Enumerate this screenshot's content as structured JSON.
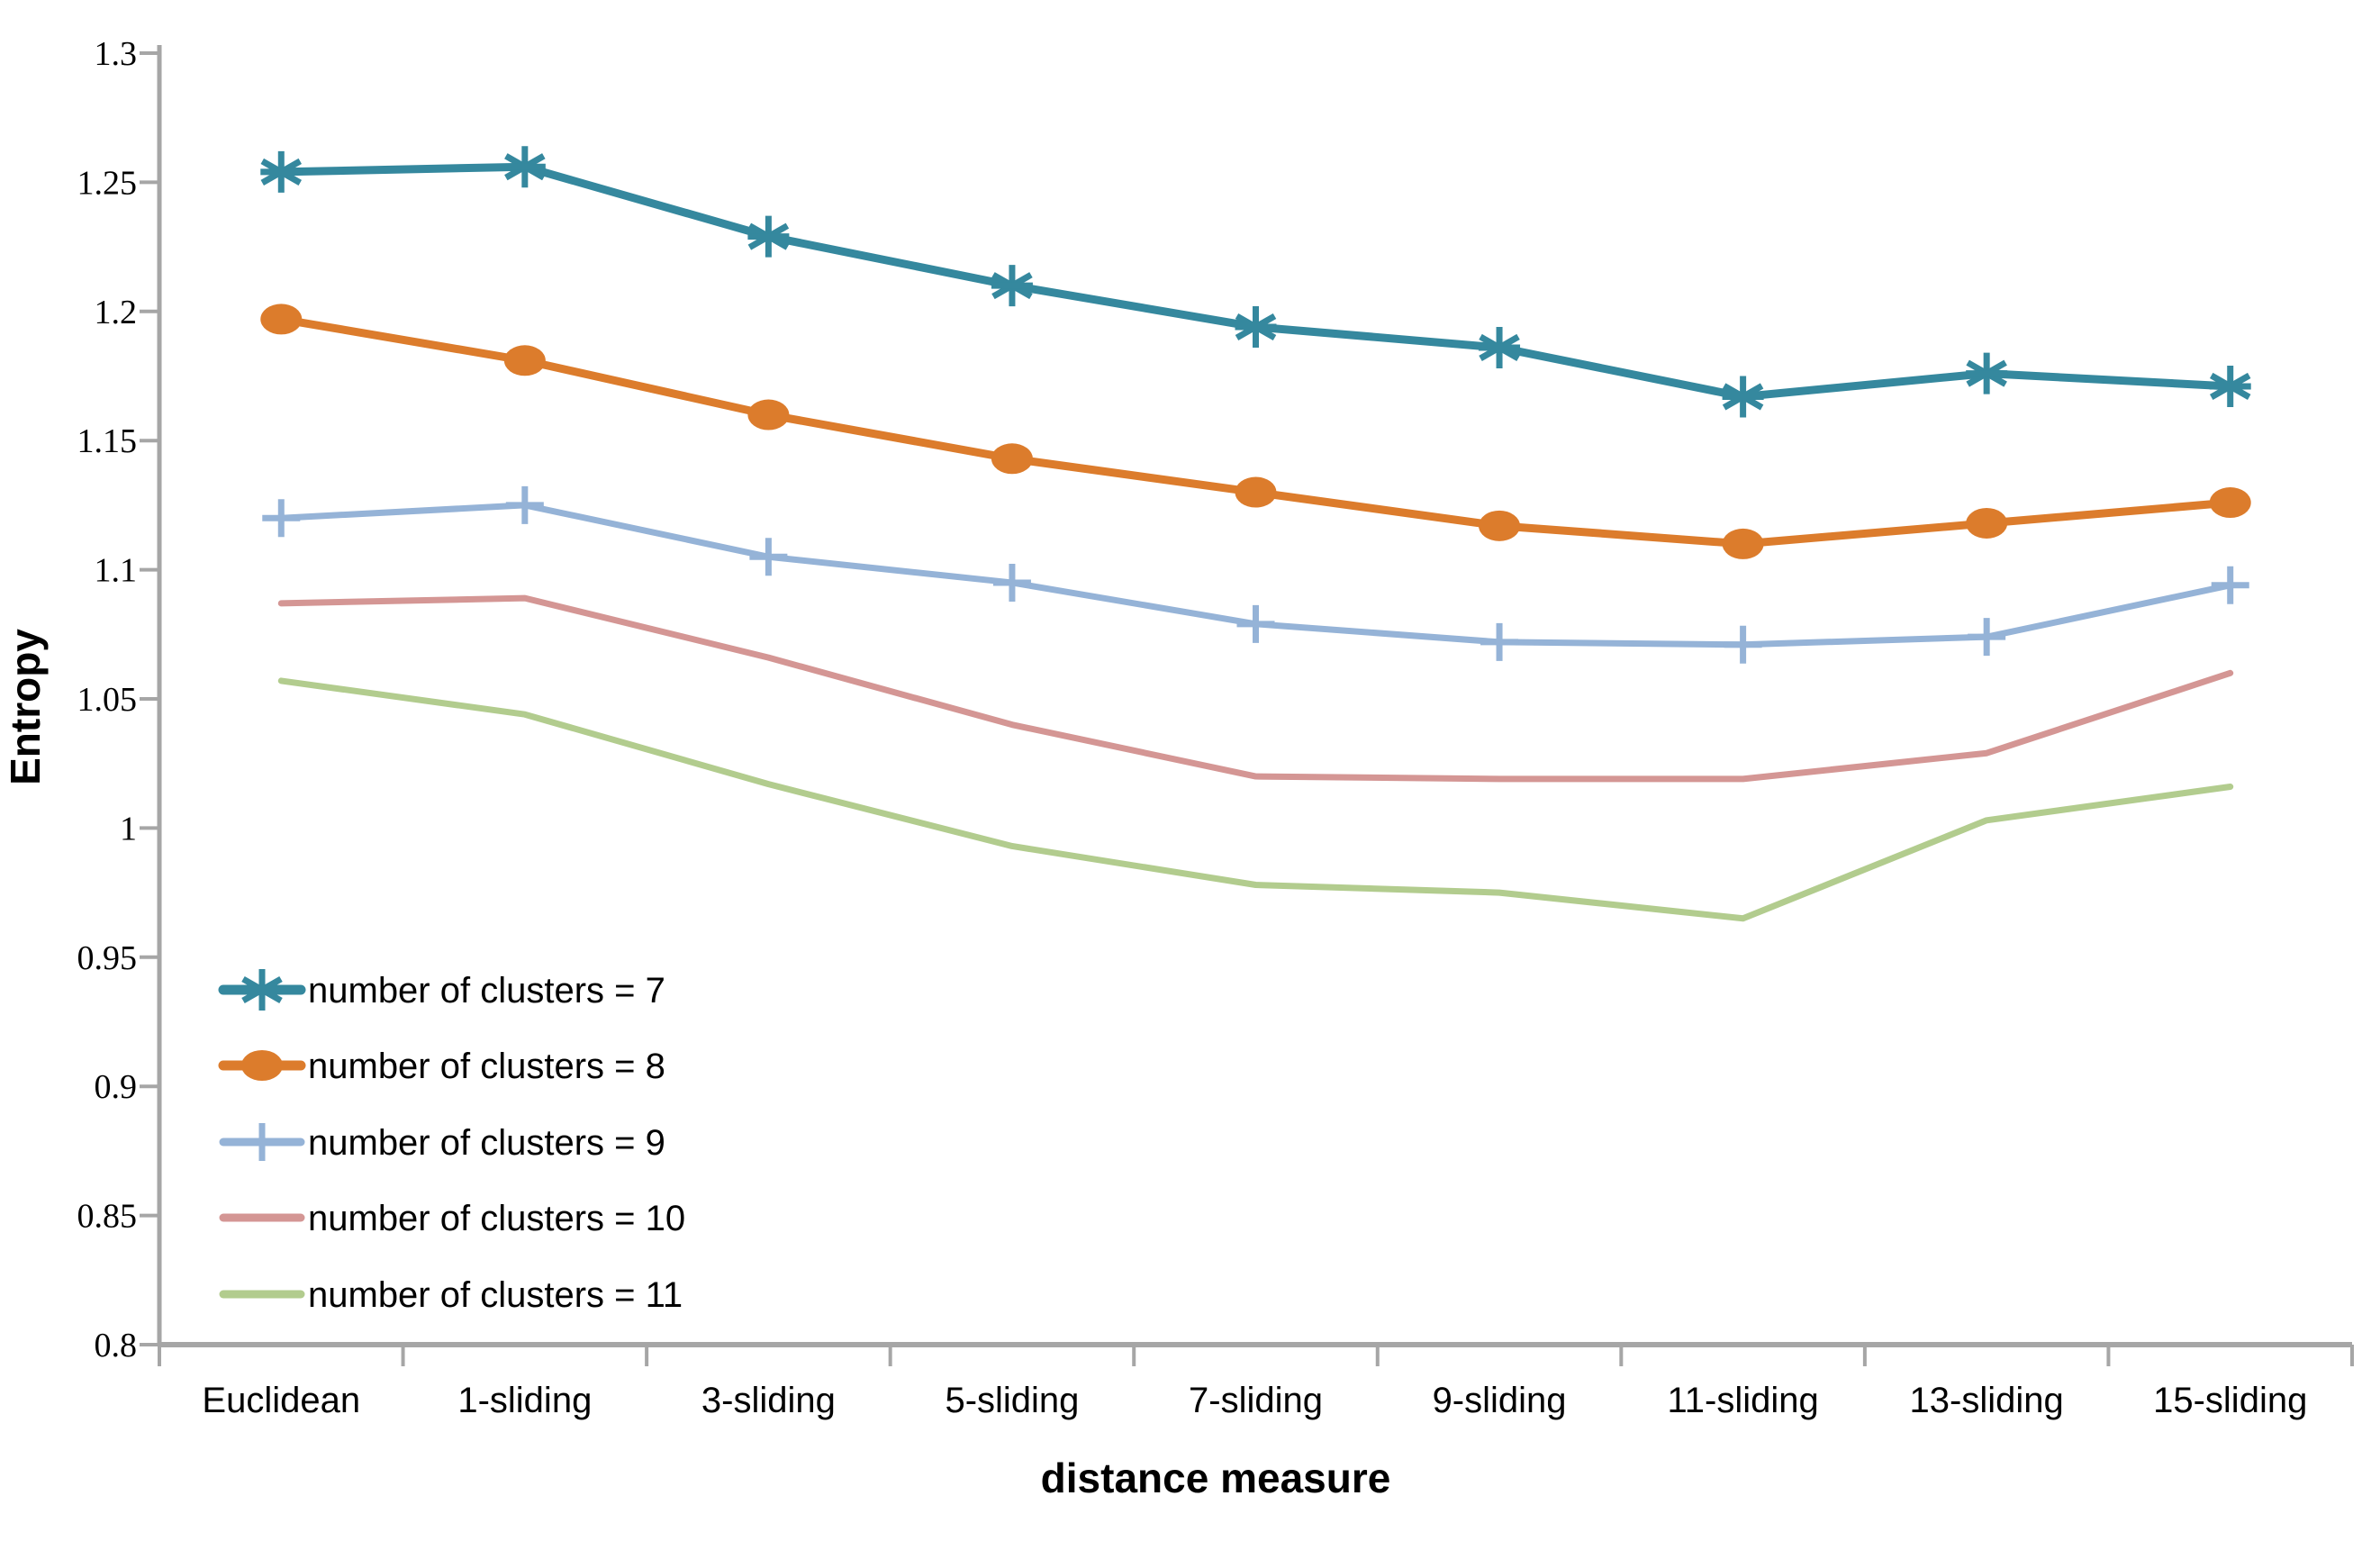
{
  "figure": {
    "background": "#ffffff",
    "axis_color": "#A6A6A6",
    "text_color": "#000000"
  },
  "chart_data": {
    "type": "line",
    "title": "",
    "xlabel": "distance measure",
    "ylabel": "Entropy",
    "categories": [
      "Euclidean",
      "1-sliding",
      "3-sliding",
      "5-sliding",
      "7-sliding",
      "9-sliding",
      "11-sliding",
      "13-sliding",
      "15-sliding"
    ],
    "series": [
      {
        "name": "number of clusters = 7",
        "color": "#35889E",
        "marker": "asterisk",
        "line_width": 9,
        "values": [
          1.254,
          1.256,
          1.229,
          1.21,
          1.194,
          1.186,
          1.167,
          1.176,
          1.171
        ]
      },
      {
        "name": "number of clusters = 8",
        "color": "#DC7C2C",
        "marker": "ellipse",
        "line_width": 9,
        "values": [
          1.197,
          1.181,
          1.16,
          1.143,
          1.13,
          1.117,
          1.11,
          1.118,
          1.126
        ]
      },
      {
        "name": "number of clusters = 9",
        "color": "#95B3D7",
        "marker": "plus",
        "line_width": 7,
        "values": [
          1.12,
          1.125,
          1.105,
          1.095,
          1.079,
          1.072,
          1.071,
          1.074,
          1.094
        ]
      },
      {
        "name": "number of clusters = 10",
        "color": "#D49694",
        "marker": "none",
        "line_width": 7,
        "values": [
          1.087,
          1.089,
          1.066,
          1.04,
          1.02,
          1.019,
          1.019,
          1.029,
          1.06
        ]
      },
      {
        "name": "number of clusters = 11",
        "color": "#B2CC8E",
        "marker": "none",
        "line_width": 7,
        "values": [
          1.057,
          1.044,
          1.017,
          0.993,
          0.978,
          0.975,
          0.965,
          1.003,
          1.016
        ]
      }
    ],
    "ylim": [
      0.8,
      1.3
    ],
    "yticks": [
      {
        "label": "1.3",
        "value": 1.3
      },
      {
        "label": "1.25",
        "value": 1.25
      },
      {
        "label": "1.2",
        "value": 1.2
      },
      {
        "label": "1.15",
        "value": 1.15
      },
      {
        "label": "1.1",
        "value": 1.1
      },
      {
        "label": "1.05",
        "value": 1.05
      },
      {
        "label": "1",
        "value": 1.0
      },
      {
        "label": "0.95",
        "value": 0.95
      },
      {
        "label": "0.9",
        "value": 0.9
      },
      {
        "label": "0.85",
        "value": 0.85
      },
      {
        "label": "0.8",
        "value": 0.8
      }
    ],
    "grid": false,
    "legend_position": "inside-lower-left"
  }
}
